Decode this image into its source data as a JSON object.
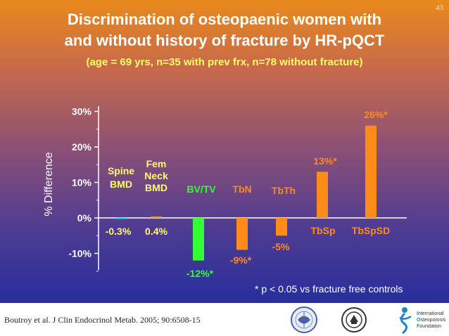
{
  "slide_number": "43",
  "title_line1": "Discrimination of osteopaenic women with",
  "title_line2": "and without history of fracture by HR-pQCT",
  "subtitle": "(age = 69 yrs, n=35 with prev frx, n=78 without fracture)",
  "footnote": "* p < 0.05 vs fracture free controls",
  "citation": "Boutroy et al. J Clin Endocrinol Metab. 2005; 90:6508-15",
  "logo_text": {
    "a": "nternational",
    "b": "steoporosis",
    "c": "oundation"
  },
  "colors": {
    "yellow": "#ffff66",
    "orange": "#ff8c1a",
    "green": "#33ff33",
    "white": "#ffffff"
  },
  "chart_data": {
    "type": "bar",
    "title": "Discrimination of osteopaenic women with and without history of fracture by HR-pQCT",
    "ylabel": "% Difference",
    "ylim": [
      -15,
      30
    ],
    "yticks": [
      "30%",
      "20%",
      "10%",
      "0%",
      "-10%"
    ],
    "ytick_values": [
      30,
      20,
      10,
      0,
      -10
    ],
    "grid": false,
    "categories": [
      "Spine BMD",
      "Fem Neck BMD",
      "BV/TV",
      "TbN",
      "TbTh",
      "TbSp",
      "TbSpSD"
    ],
    "values": [
      -0.3,
      0.4,
      -12,
      -9,
      -5,
      13,
      26
    ],
    "value_labels": [
      "-0.3%",
      "0.4%",
      "-12%*",
      "-9%*",
      "-5%",
      "13%*",
      "26%*"
    ],
    "category_label_lines": [
      [
        "Spine",
        "BMD"
      ],
      [
        "Fem",
        "Neck",
        "BMD"
      ],
      [
        "BV/TV"
      ],
      [
        "TbN"
      ],
      [
        "TbTh"
      ],
      [
        "TbSp"
      ],
      [
        "TbSpSD"
      ]
    ],
    "bar_colors": [
      "#33cccc",
      "#ff8c1a",
      "#33ff33",
      "#ff8c1a",
      "#ff8c1a",
      "#ff8c1a",
      "#ff8c1a"
    ],
    "label_colors": [
      "#ffff66",
      "#ffff66",
      "#33ff33",
      "#ff8c1a",
      "#ff8c1a",
      "#ff8c1a",
      "#ff8c1a"
    ]
  }
}
